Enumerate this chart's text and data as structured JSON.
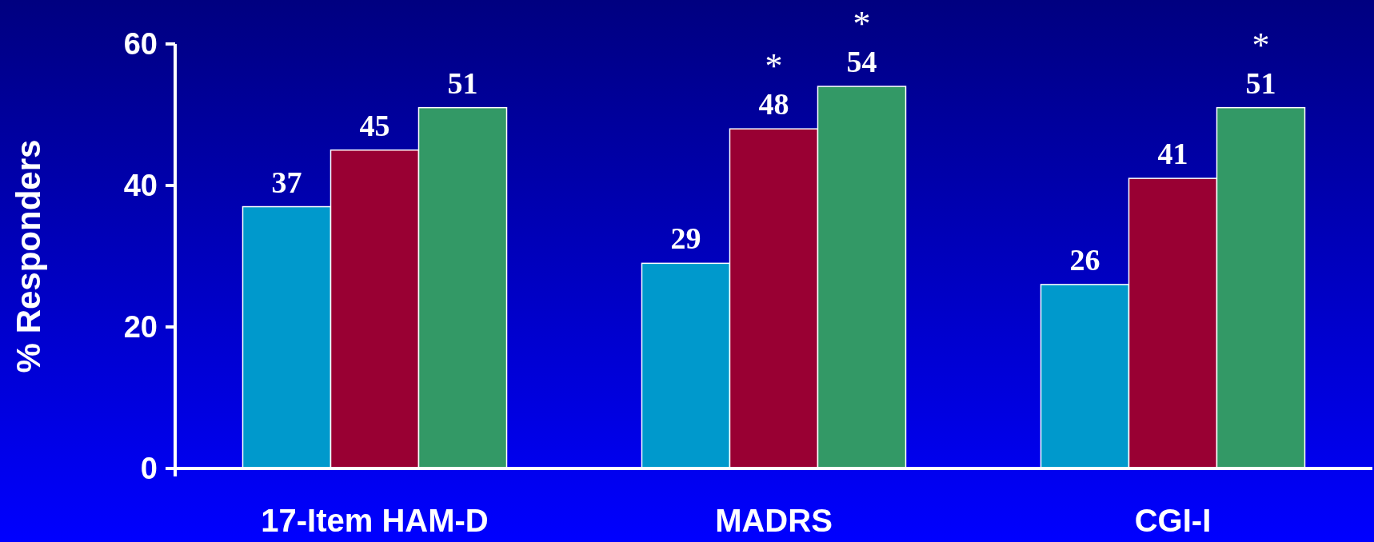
{
  "chart_data": {
    "type": "bar",
    "ylabel": "% Responders",
    "categories": [
      "17-Item HAM-D",
      "MADRS",
      "CGI-I"
    ],
    "series": [
      {
        "color": "#0099cc",
        "values": [
          37,
          29,
          26
        ]
      },
      {
        "color": "#990033",
        "values": [
          45,
          48,
          41
        ]
      },
      {
        "color": "#339966",
        "values": [
          51,
          54,
          51
        ]
      }
    ],
    "ylim": [
      0,
      60
    ],
    "yticks": [
      0,
      20,
      40,
      60
    ],
    "data_labels": true,
    "annotations": [
      "*",
      "*",
      "*"
    ]
  }
}
